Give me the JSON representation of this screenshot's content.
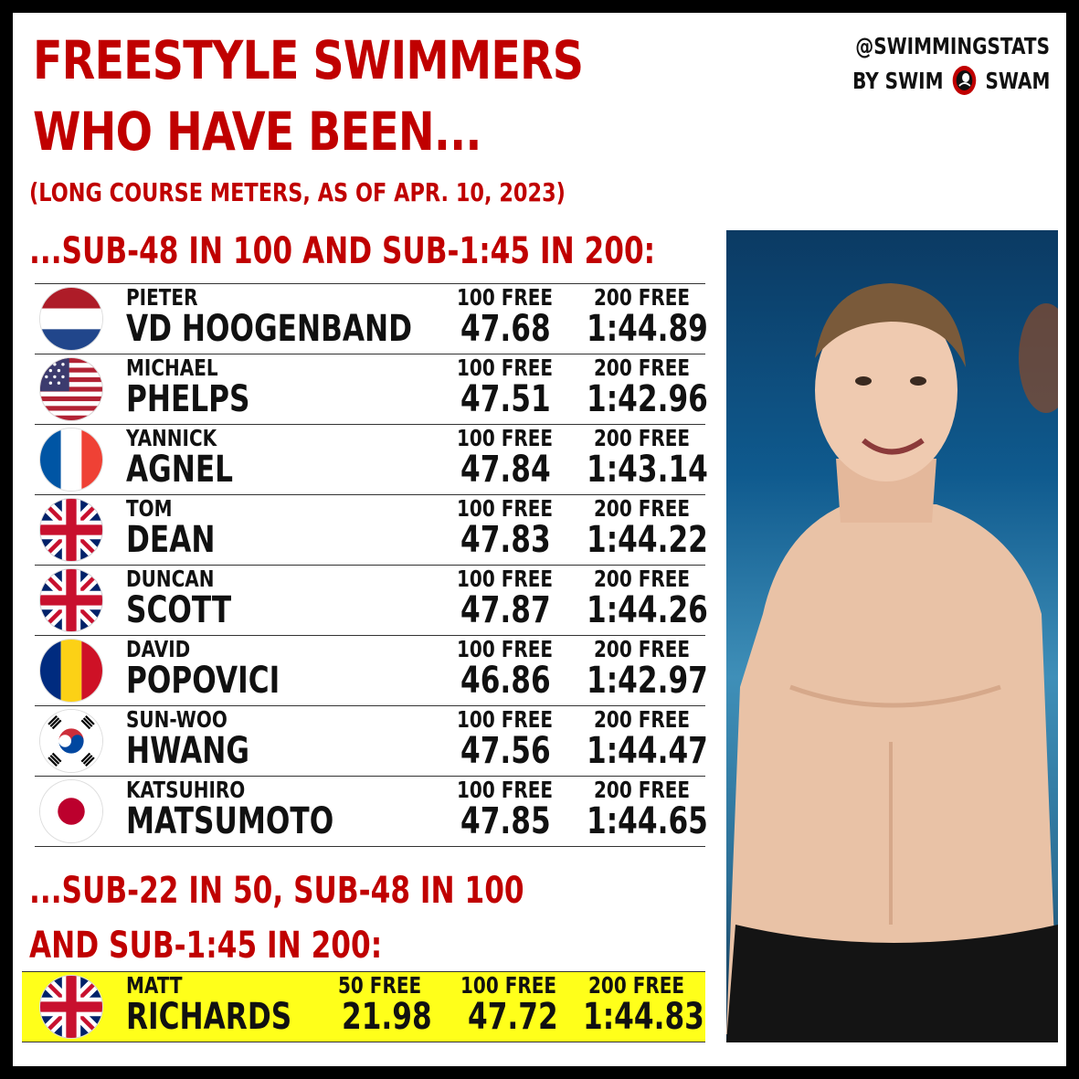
{
  "title_line1": "FREESTYLE SWIMMERS",
  "title_line2": "WHO HAVE BEEN...",
  "subtitle": "(LONG COURSE METERS, AS OF APR. 10, 2023)",
  "brand": {
    "line1": "@SWIMMINGSTATS",
    "line2_left": "BY SWIM",
    "line2_right": "SWAM"
  },
  "section1": "...SUB-48 IN 100 AND SUB-1:45 IN 200:",
  "labels": {
    "free50": "50 FREE",
    "free100": "100 FREE",
    "free200": "200 FREE"
  },
  "swimmers": [
    {
      "first": "PIETER",
      "last": "VD HOOGENBAND",
      "flag": "netherlands-flag",
      "free100": "47.68",
      "free200": "1:44.89"
    },
    {
      "first": "MICHAEL",
      "last": "PHELPS",
      "flag": "usa-flag",
      "free100": "47.51",
      "free200": "1:42.96"
    },
    {
      "first": "YANNICK",
      "last": "AGNEL",
      "flag": "france-flag",
      "free100": "47.84",
      "free200": "1:43.14"
    },
    {
      "first": "TOM",
      "last": "DEAN",
      "flag": "uk-flag",
      "free100": "47.83",
      "free200": "1:44.22"
    },
    {
      "first": "DUNCAN",
      "last": "SCOTT",
      "flag": "uk-flag",
      "free100": "47.87",
      "free200": "1:44.26"
    },
    {
      "first": "DAVID",
      "last": "POPOVICI",
      "flag": "romania-flag",
      "free100": "46.86",
      "free200": "1:42.97"
    },
    {
      "first": "SUN-WOO",
      "last": "HWANG",
      "flag": "south-korea-flag",
      "free100": "47.56",
      "free200": "1:44.47"
    },
    {
      "first": "KATSUHIRO",
      "last": "MATSUMOTO",
      "flag": "japan-flag",
      "free100": "47.85",
      "free200": "1:44.65"
    }
  ],
  "section2_line1": "...SUB-22 IN 50, SUB-48 IN 100",
  "section2_line2": "AND SUB-1:45 IN 200:",
  "highlight": {
    "first": "MATT",
    "last": "RICHARDS",
    "flag": "uk-flag",
    "free50": "21.98",
    "free100": "47.72",
    "free200": "1:44.83"
  },
  "colors": {
    "accent": "#c00000",
    "highlight": "#ffff1a",
    "frame": "#000000"
  }
}
